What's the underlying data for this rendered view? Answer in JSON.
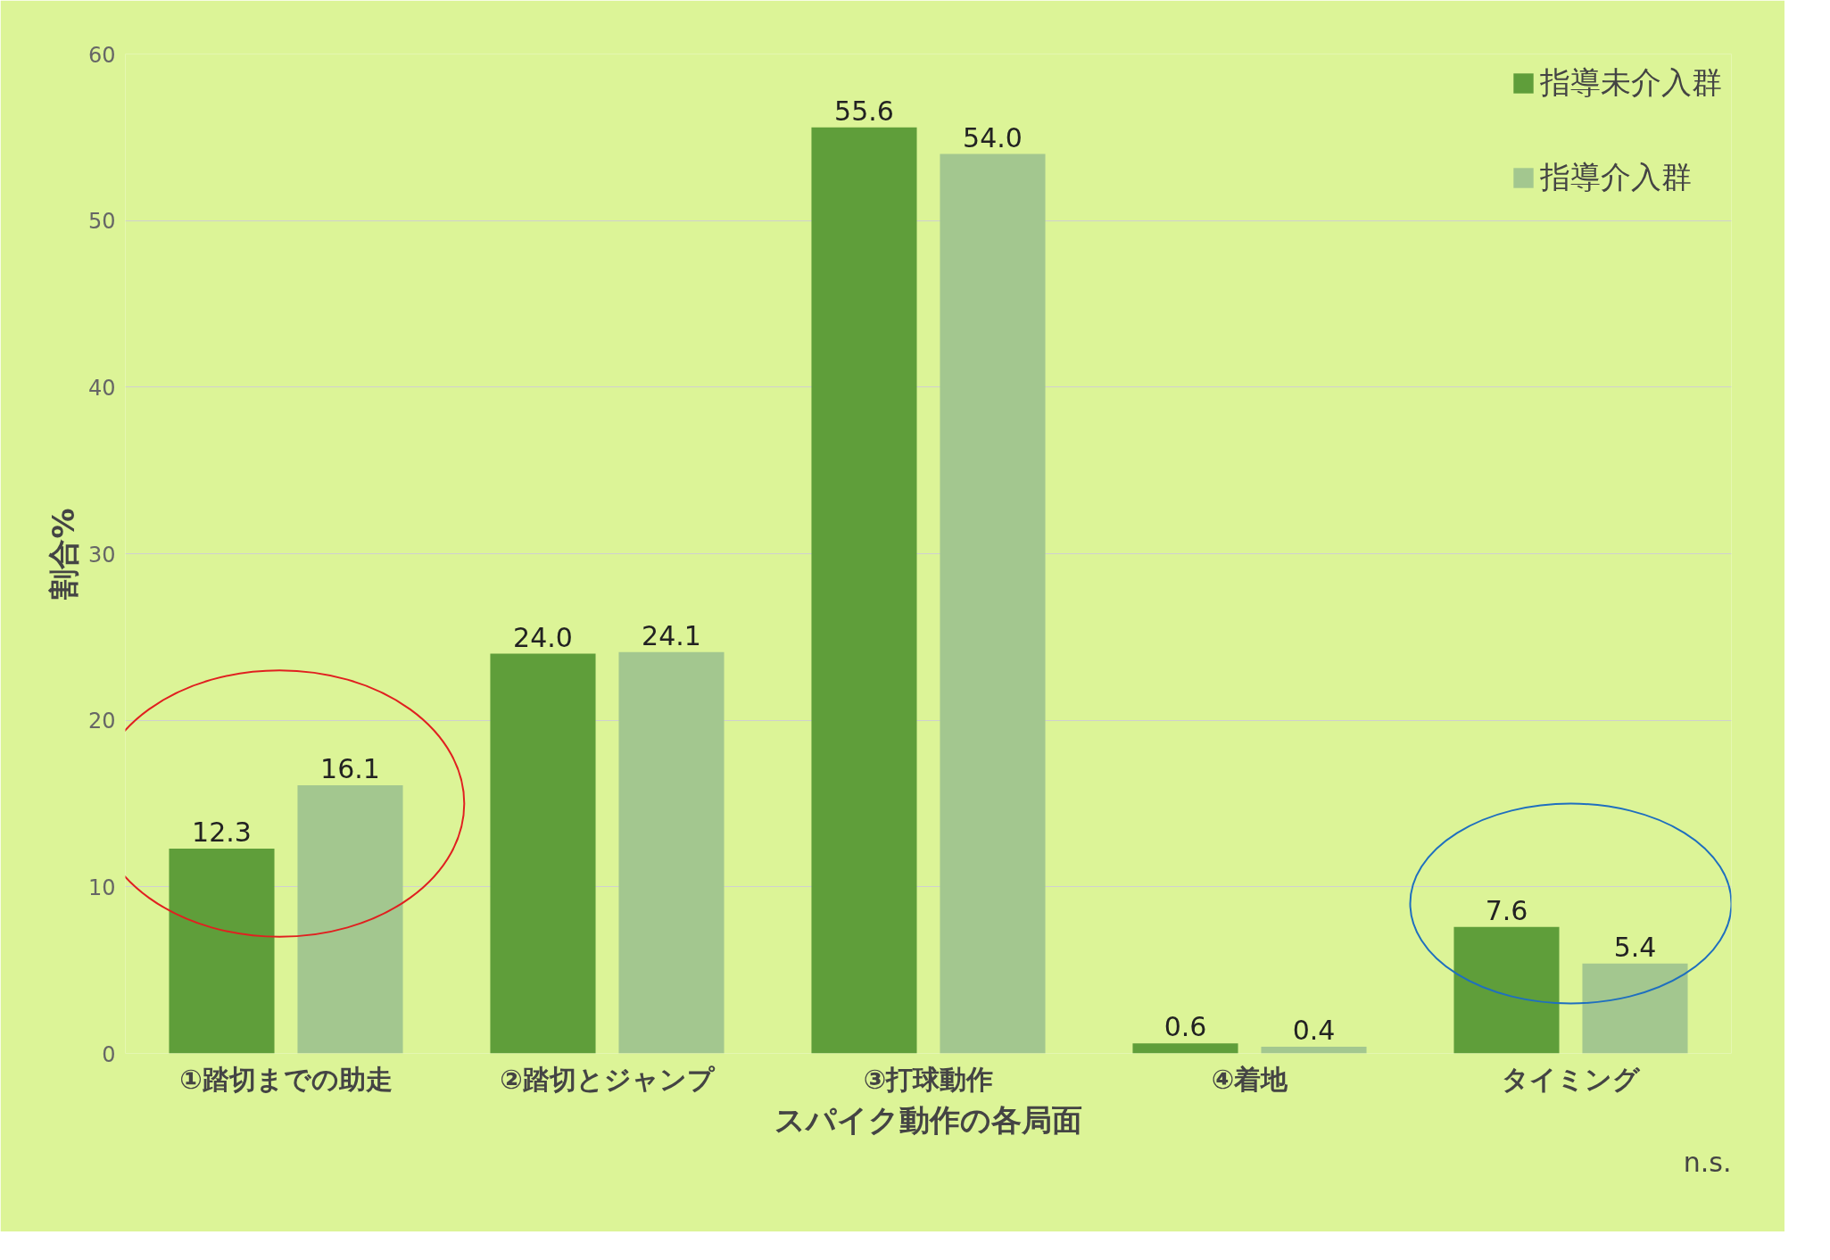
{
  "chart_data": {
    "type": "bar",
    "xlabel": "スパイク動作の各局面",
    "ylabel": "割合%",
    "categories": [
      "①踏切までの助走",
      "②踏切とジャンプ",
      "③打球動作",
      "④着地",
      "タイミング"
    ],
    "series": [
      {
        "name": "指導未介入群",
        "color": "#5f9e3a",
        "values": [
          12.3,
          24.0,
          55.6,
          0.6,
          7.6
        ],
        "value_labels": [
          "12.3",
          "24.0",
          "55.6",
          "0.6",
          "7.6"
        ]
      },
      {
        "name": "指導介入群",
        "color": "#a3c78f",
        "values": [
          16.1,
          24.1,
          54.0,
          0.4,
          5.4
        ],
        "value_labels": [
          "16.1",
          "24.1",
          "54.0",
          "0.4",
          "5.4"
        ]
      }
    ],
    "ylim": [
      0,
      60
    ],
    "yticks": [
      0,
      10,
      20,
      30,
      40,
      50,
      60
    ],
    "grid": "y",
    "legend": "top right",
    "annotations": [
      "n.s."
    ]
  }
}
